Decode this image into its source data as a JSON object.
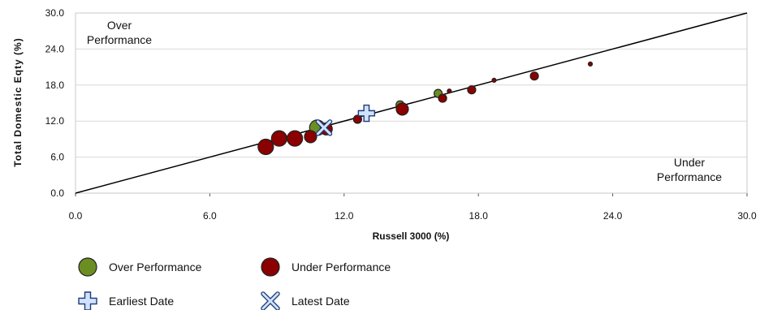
{
  "chart_data": {
    "type": "scatter",
    "xlabel": "Russell 3000  (%)",
    "ylabel": "Total Domestic Eqty (%)",
    "xlim": [
      0,
      30
    ],
    "ylim": [
      0,
      30
    ],
    "xticks": [
      "0.0",
      "6.0",
      "12.0",
      "18.0",
      "24.0",
      "30.0"
    ],
    "yticks": [
      "0.0",
      "6.0",
      "12.0",
      "18.0",
      "24.0",
      "30.0"
    ],
    "grid": "horizontal",
    "reference_line": {
      "from": [
        0,
        0
      ],
      "to": [
        30,
        30
      ]
    },
    "annotations": [
      {
        "id": "over",
        "lines": [
          "Over",
          "Performance"
        ],
        "position": "top-left"
      },
      {
        "id": "under",
        "lines": [
          "Under",
          "Performance"
        ],
        "position": "bottom-right"
      }
    ],
    "series": [
      {
        "name": "Over Performance",
        "color": "#6b8e23",
        "points": [
          {
            "x": 10.8,
            "y": 10.9,
            "size": "large"
          },
          {
            "x": 14.5,
            "y": 14.7,
            "size": "small"
          },
          {
            "x": 16.2,
            "y": 16.6,
            "size": "small"
          }
        ]
      },
      {
        "name": "Under Performance",
        "color": "#8b0000",
        "points": [
          {
            "x": 8.5,
            "y": 7.7,
            "size": "large"
          },
          {
            "x": 9.1,
            "y": 9.1,
            "size": "large"
          },
          {
            "x": 9.8,
            "y": 9.1,
            "size": "large"
          },
          {
            "x": 10.5,
            "y": 9.4,
            "size": "medium"
          },
          {
            "x": 11.2,
            "y": 10.7,
            "size": "medium"
          },
          {
            "x": 12.6,
            "y": 12.3,
            "size": "small"
          },
          {
            "x": 14.6,
            "y": 14.0,
            "size": "medium"
          },
          {
            "x": 16.4,
            "y": 15.8,
            "size": "small"
          },
          {
            "x": 16.7,
            "y": 17.0,
            "size": "tiny"
          },
          {
            "x": 17.7,
            "y": 17.2,
            "size": "small"
          },
          {
            "x": 18.7,
            "y": 18.8,
            "size": "tiny"
          },
          {
            "x": 20.5,
            "y": 19.5,
            "size": "small"
          },
          {
            "x": 23.0,
            "y": 21.5,
            "size": "tiny"
          }
        ]
      }
    ],
    "markers": [
      {
        "name": "Earliest Date",
        "shape": "cross",
        "x": 13.0,
        "y": 13.3
      },
      {
        "name": "Latest Date",
        "shape": "x",
        "x": 11.1,
        "y": 10.9
      }
    ],
    "legend": [
      {
        "label": "Over Performance",
        "shape": "circle",
        "color": "#6b8e23"
      },
      {
        "label": "Under Performance",
        "shape": "circle",
        "color": "#8b0000"
      },
      {
        "label": "Earliest Date",
        "shape": "cross",
        "color": "#cce0ff"
      },
      {
        "label": "Latest Date",
        "shape": "x",
        "color": "#cce0ff"
      }
    ],
    "legend_position": "bottom-left"
  }
}
